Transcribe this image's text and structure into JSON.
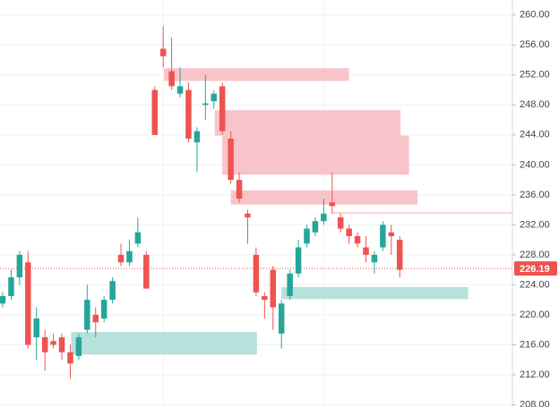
{
  "chart_data": {
    "type": "candlestick",
    "open": [
      221.5,
      222.5,
      225,
      227,
      217,
      217,
      216.5,
      217,
      215,
      214.5,
      218,
      220,
      219.5,
      222,
      228,
      227,
      229.5,
      228,
      250,
      255.5,
      252.5,
      249.5,
      250,
      243,
      248,
      248.5,
      250.5,
      243.5,
      238,
      233.5,
      228,
      222.5,
      226,
      217.5,
      222.5,
      225.5,
      229.5,
      231,
      232.5,
      235,
      233,
      231.5,
      230.5,
      229,
      227,
      229,
      231,
      230
    ],
    "high": [
      223,
      226,
      228.5,
      228.5,
      221,
      218,
      217.5,
      217.5,
      216,
      217.5,
      224,
      221,
      222.5,
      225,
      229.5,
      230,
      233,
      228.5,
      250.5,
      258.5,
      257,
      253,
      251,
      245,
      252,
      250,
      251,
      244.5,
      239,
      234,
      229,
      223,
      226.5,
      222,
      226,
      230,
      232,
      233,
      235.5,
      239,
      233.5,
      232,
      231,
      230.5,
      228.5,
      232.5,
      232,
      230.5
    ],
    "low": [
      221,
      222,
      224,
      215.5,
      214,
      212.5,
      215.5,
      214,
      211.5,
      214,
      217.5,
      217,
      219,
      221.5,
      226.5,
      226.5,
      229,
      223.5,
      244,
      253,
      250,
      249,
      243,
      239,
      246,
      247.5,
      244,
      237.5,
      235,
      229.5,
      222.5,
      219.5,
      218,
      215.5,
      222,
      225,
      229,
      230.5,
      232,
      233.5,
      231,
      229.5,
      229,
      227,
      225.5,
      228.5,
      228,
      225
    ],
    "close": [
      222.5,
      225,
      228,
      216,
      219.5,
      215,
      216,
      215,
      213.5,
      217,
      222,
      219,
      222,
      224.5,
      227,
      228.5,
      231,
      223.5,
      244,
      254.5,
      250.5,
      250.5,
      243.5,
      244.5,
      248.2,
      249.5,
      244.5,
      238,
      235.5,
      233,
      223,
      222,
      221,
      221.5,
      225.5,
      229,
      231.5,
      232.5,
      233.5,
      234.5,
      231.5,
      230.5,
      229.5,
      228,
      228,
      232,
      230.5,
      226
    ],
    "up_color": "#26a69a",
    "down_color": "#ef5350",
    "zones": [
      {
        "low": 251.2,
        "high": 252.9,
        "start": 19.1,
        "end": 41,
        "color": "#f8c1c6"
      },
      {
        "low": 243.9,
        "high": 247.3,
        "start": 25.1,
        "end": 47.1,
        "color": "#f8c1c6"
      },
      {
        "low": 238.7,
        "high": 243.9,
        "start": 26,
        "end": 48.1,
        "color": "#f8c1c6"
      },
      {
        "low": 234.7,
        "high": 236.6,
        "start": 27,
        "end": 49.1,
        "color": "#f8c1c6"
      },
      {
        "low": 214.7,
        "high": 217.7,
        "start": 8.1,
        "end": 30.1,
        "color": "#b2dfdb"
      },
      {
        "low": 222.1,
        "high": 223.7,
        "start": 33,
        "end": 55.1,
        "color": "#b2dfdb"
      }
    ],
    "level": {
      "value": 233.6,
      "start": 39,
      "color": "#f4a7ae"
    },
    "last_price": {
      "value": 226.19,
      "label": "226.19",
      "color": "#ef5350"
    },
    "xlim": [
      -0.32,
      60.34
    ],
    "xgrid": [
      19,
      38
    ],
    "ylim": [
      207.7,
      262.0
    ],
    "yticks": [
      {
        "value": 208,
        "label": "208.00"
      },
      {
        "value": 212,
        "label": "212.00"
      },
      {
        "value": 216,
        "label": "216.00"
      },
      {
        "value": 220,
        "label": "220.00"
      },
      {
        "value": 224,
        "label": "224.00"
      },
      {
        "value": 228,
        "label": "228.00"
      },
      {
        "value": 232,
        "label": "232.00"
      },
      {
        "value": 236,
        "label": "236.00"
      },
      {
        "value": 240,
        "label": "240.00"
      },
      {
        "value": 244,
        "label": "244.00"
      },
      {
        "value": 248,
        "label": "248.00"
      },
      {
        "value": 252,
        "label": "252.00"
      },
      {
        "value": 256,
        "label": "256.00"
      },
      {
        "value": 260,
        "label": "260.00"
      }
    ],
    "grid": true
  }
}
